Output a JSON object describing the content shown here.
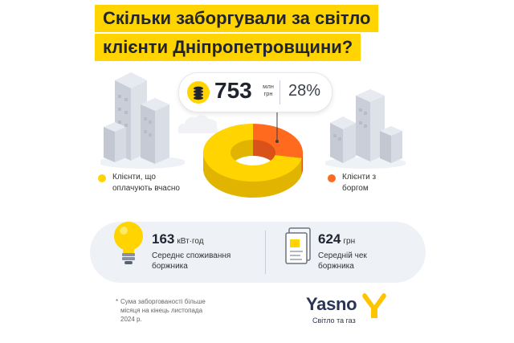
{
  "title": {
    "line1": "Скільки заборгували за світло",
    "line2": "клієнти Дніпропетровщини?"
  },
  "debt": {
    "amount": "753",
    "unit": "млн грн",
    "percent": "28%"
  },
  "donut": {
    "share_paying": 72,
    "share_debt": 28,
    "color_paying": "#ffd400",
    "color_debt": "#ff6a1f"
  },
  "legend": {
    "paying": "Клієнти, що оплачують вчасно",
    "debt": "Клієнти з боргом"
  },
  "stats": {
    "consumption_value": "163",
    "consumption_unit": "кВт·год",
    "consumption_desc": "Середнє споживання боржника",
    "check_value": "624",
    "check_unit": "грн",
    "check_desc": "Середній чек боржника"
  },
  "footnote": {
    "star": "*",
    "text": "Сума заборгованості більше місяця на кінець листопада 2024 р."
  },
  "brand": {
    "name": "Yasno",
    "tagline": "Світло та газ",
    "accent": "#ffd400"
  }
}
